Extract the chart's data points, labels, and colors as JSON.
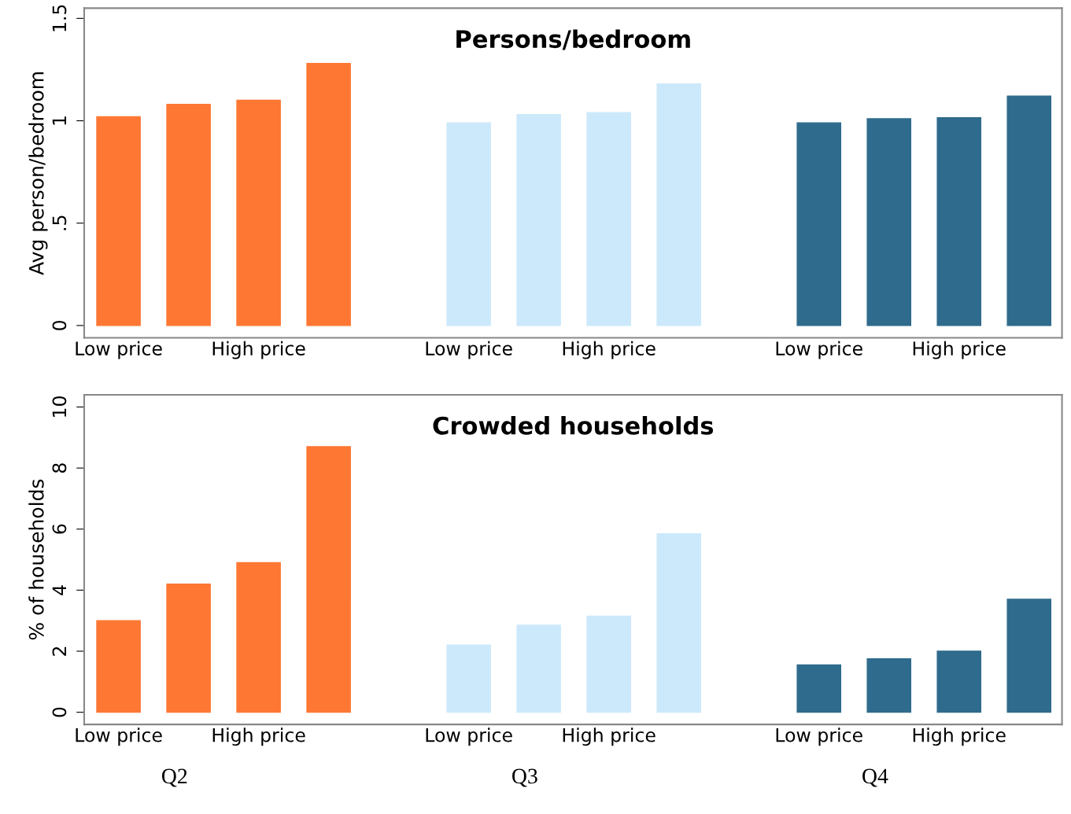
{
  "chart_data": [
    {
      "type": "bar",
      "title": "Persons/bedroom",
      "ylabel": "Avg person/bedroom",
      "categories": [
        "Low price",
        null,
        "High price",
        null,
        null,
        "Low price",
        null,
        "High price",
        null,
        null,
        "Low price",
        null,
        "High price",
        null
      ],
      "values": [
        1.02,
        1.08,
        1.1,
        1.28,
        null,
        0.99,
        1.03,
        1.04,
        1.18,
        null,
        0.99,
        1.01,
        1.015,
        1.12
      ],
      "colors": [
        "#fe7733",
        "#fe7733",
        "#fe7733",
        "#fe7733",
        null,
        "#cce9fb",
        "#cce9fb",
        "#cce9fb",
        "#cce9fb",
        null,
        "#2f6b8c",
        "#2f6b8c",
        "#2f6b8c",
        "#2f6b8c"
      ],
      "ylim": [
        -0.06,
        1.55
      ],
      "yticks": [
        0,
        {
          "value": 0.5,
          "label": ".5"
        },
        1,
        1.5
      ],
      "grid": false,
      "legend": false
    },
    {
      "type": "bar",
      "title": "Crowded households",
      "ylabel": "% of households",
      "categories": [
        "Low price",
        null,
        "High price",
        null,
        null,
        "Low price",
        null,
        "High price",
        null,
        null,
        "Low price",
        null,
        "High price",
        null
      ],
      "values": [
        3.0,
        4.2,
        4.9,
        8.7,
        null,
        2.2,
        2.85,
        3.15,
        5.85,
        null,
        1.55,
        1.75,
        2.0,
        3.7
      ],
      "colors": [
        "#fe7733",
        "#fe7733",
        "#fe7733",
        "#fe7733",
        null,
        "#cce9fb",
        "#cce9fb",
        "#cce9fb",
        "#cce9fb",
        null,
        "#2f6b8c",
        "#2f6b8c",
        "#2f6b8c",
        "#2f6b8c"
      ],
      "ylim": [
        -0.4,
        10.4
      ],
      "yticks": [
        0,
        2,
        4,
        6,
        8,
        10
      ],
      "grid": false,
      "legend": false,
      "annotations": [
        "Q2",
        "Q3",
        "Q4"
      ]
    }
  ]
}
